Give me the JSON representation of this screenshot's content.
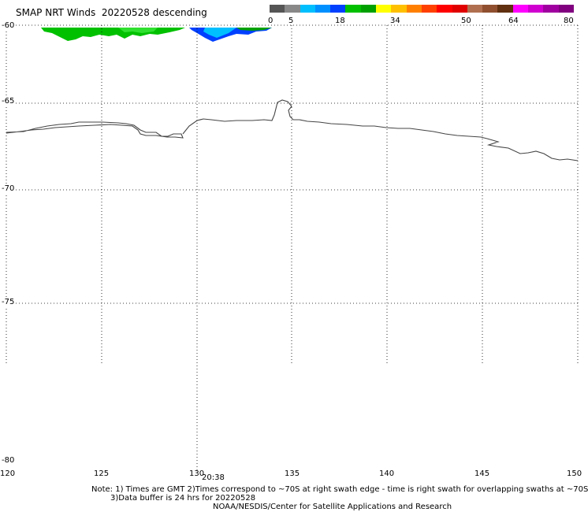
{
  "header": {
    "title": "SMAP NRT Winds  20220528 descending"
  },
  "colorbar": {
    "ticks": [
      "0",
      "5",
      "18",
      "34",
      "50",
      "64",
      "80"
    ],
    "segments": [
      "#555555",
      "#888888",
      "#00bfff",
      "#0090ff",
      "#0040ff",
      "#00c000",
      "#00a000",
      "#ffff00",
      "#ffc000",
      "#ff8000",
      "#ff4000",
      "#ff0000",
      "#e00000",
      "#b07050",
      "#905030",
      "#603010",
      "#ff00ff",
      "#d000d0",
      "#a000a0",
      "#800080"
    ]
  },
  "map": {
    "lat_labels": [
      "-60",
      "-65",
      "-70",
      "-75",
      "-80"
    ],
    "lon_labels": [
      "120",
      "125",
      "130",
      "135",
      "140",
      "145",
      "150"
    ],
    "swath_time": "20:38"
  },
  "notes": {
    "line1": "Note: 1) Times are GMT 2)Times correspond to ~70S at right swath edge - time is right swath for overlapping swaths at ~70S",
    "line2": "3)Data buffer is 24 hrs for 20220528",
    "line3": "NOAA/NESDIS/Center for Satellite Applications and Research"
  }
}
